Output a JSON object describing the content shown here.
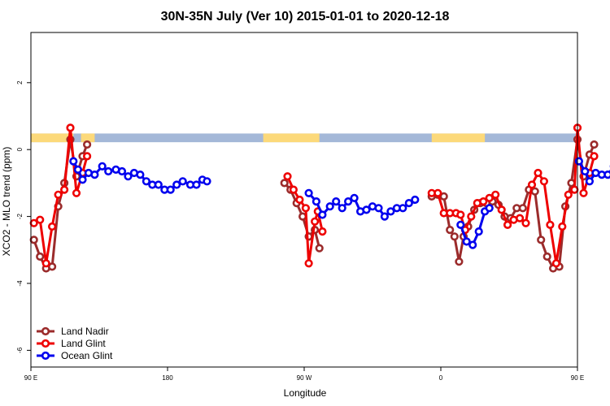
{
  "chart_data": {
    "type": "line",
    "title": "30N-35N July (Ver 10)   2015-01-01 to 2020-12-18",
    "xlabel": "Longitude",
    "ylabel": "XCO2 - MLO trend (ppm)",
    "xlim": [
      90,
      450
    ],
    "ylim": [
      -6.5,
      3.5
    ],
    "x_ticks": [
      {
        "value": 90,
        "label": "90 E"
      },
      {
        "value": 180,
        "label": "180"
      },
      {
        "value": 270,
        "label": "90 W"
      },
      {
        "value": 360,
        "label": "0"
      },
      {
        "value": 450,
        "label": "90 E"
      },
      {
        "value": 540,
        "label": "180"
      }
    ],
    "y_ticks": [
      {
        "value": 2,
        "label": "2"
      },
      {
        "value": 0,
        "label": "0"
      },
      {
        "value": -2,
        "label": "-2"
      },
      {
        "value": -4,
        "label": "-4"
      },
      {
        "value": -6,
        "label": "-6"
      }
    ],
    "grid": false,
    "legend_position": "bottom-left",
    "land_ocean_band": {
      "y_range": [
        0.22,
        0.48
      ],
      "ocean_color": "#a4b8d8",
      "land_color": "#fcd97a",
      "land_segments": [
        [
          90,
          118
        ],
        [
          123,
          132
        ],
        [
          243,
          280
        ],
        [
          354,
          389
        ],
        [
          476,
          493
        ],
        [
          495,
          500
        ]
      ]
    },
    "series": [
      {
        "name": "Land Nadir",
        "color": "#9b2b2b",
        "segments": [
          [
            [
              92,
              -2.7
            ],
            [
              96,
              -3.2
            ],
            [
              100,
              -3.55
            ],
            [
              104,
              -3.5
            ],
            [
              108,
              -1.7
            ],
            [
              112,
              -1.0
            ],
            [
              116,
              0.3
            ],
            [
              120,
              -0.8
            ],
            [
              124,
              -0.2
            ],
            [
              127,
              0.15
            ]
          ],
          [
            [
              257,
              -1.0
            ],
            [
              261,
              -1.2
            ],
            [
              265,
              -1.6
            ],
            [
              269,
              -2.0
            ],
            [
              273,
              -2.6
            ],
            [
              277,
              -2.4
            ],
            [
              280,
              -2.95
            ]
          ],
          [
            [
              354,
              -1.4
            ],
            [
              358,
              -1.35
            ],
            [
              362,
              -1.4
            ],
            [
              366,
              -2.4
            ],
            [
              369,
              -2.6
            ],
            [
              372,
              -3.35
            ],
            [
              375,
              -2.6
            ],
            [
              378,
              -2.3
            ],
            [
              382,
              -1.8
            ],
            [
              386,
              -1.6
            ],
            [
              390,
              -1.6
            ],
            [
              394,
              -1.55
            ],
            [
              398,
              -1.65
            ],
            [
              402,
              -2.0
            ],
            [
              406,
              -2.05
            ],
            [
              410,
              -1.75
            ],
            [
              414,
              -1.75
            ],
            [
              418,
              -1.2
            ],
            [
              422,
              -1.25
            ],
            [
              426,
              -2.7
            ],
            [
              430,
              -3.2
            ],
            [
              434,
              -3.55
            ],
            [
              438,
              -3.5
            ],
            [
              442,
              -1.7
            ],
            [
              446,
              -1.0
            ],
            [
              450,
              0.3
            ],
            [
              454,
              -0.8
            ],
            [
              458,
              -0.15
            ],
            [
              461,
              0.15
            ]
          ]
        ]
      },
      {
        "name": "Land Glint",
        "color": "#ee0000",
        "segments": [
          [
            [
              92,
              -2.2
            ],
            [
              96,
              -2.1
            ],
            [
              100,
              -3.4
            ],
            [
              104,
              -2.3
            ],
            [
              108,
              -1.35
            ],
            [
              112,
              -1.2
            ],
            [
              116,
              0.65
            ],
            [
              120,
              -1.3
            ],
            [
              124,
              -0.7
            ],
            [
              127,
              -0.2
            ]
          ],
          [
            [
              259,
              -0.8
            ],
            [
              263,
              -1.2
            ],
            [
              267,
              -1.5
            ],
            [
              271,
              -1.75
            ],
            [
              273,
              -3.4
            ],
            [
              277,
              -2.15
            ],
            [
              279,
              -1.85
            ],
            [
              282,
              -2.45
            ]
          ],
          [
            [
              354,
              -1.3
            ],
            [
              358,
              -1.3
            ],
            [
              362,
              -1.9
            ],
            [
              366,
              -1.9
            ],
            [
              370,
              -1.9
            ],
            [
              373,
              -1.95
            ],
            [
              376,
              -2.4
            ],
            [
              380,
              -2.0
            ],
            [
              384,
              -1.6
            ],
            [
              388,
              -1.55
            ],
            [
              392,
              -1.45
            ],
            [
              396,
              -1.35
            ],
            [
              400,
              -1.8
            ],
            [
              404,
              -2.25
            ],
            [
              408,
              -2.1
            ],
            [
              412,
              -2.05
            ],
            [
              416,
              -2.2
            ],
            [
              420,
              -1.05
            ],
            [
              424,
              -0.7
            ],
            [
              428,
              -0.95
            ],
            [
              432,
              -2.25
            ],
            [
              436,
              -3.4
            ],
            [
              440,
              -2.3
            ],
            [
              444,
              -1.35
            ],
            [
              448,
              -1.2
            ],
            [
              450,
              0.65
            ],
            [
              454,
              -1.3
            ],
            [
              458,
              -0.7
            ],
            [
              461,
              -0.2
            ]
          ]
        ]
      },
      {
        "name": "Ocean Glint",
        "color": "#0000ee",
        "segments": [
          [
            [
              118,
              -0.35
            ],
            [
              121,
              -0.6
            ],
            [
              124,
              -0.9
            ],
            [
              128,
              -0.7
            ],
            [
              132,
              -0.75
            ],
            [
              137,
              -0.5
            ],
            [
              141,
              -0.65
            ],
            [
              146,
              -0.6
            ],
            [
              150,
              -0.65
            ],
            [
              154,
              -0.8
            ],
            [
              158,
              -0.7
            ],
            [
              162,
              -0.75
            ],
            [
              166,
              -0.95
            ],
            [
              170,
              -1.05
            ],
            [
              174,
              -1.05
            ],
            [
              178,
              -1.2
            ],
            [
              182,
              -1.2
            ],
            [
              186,
              -1.05
            ],
            [
              190,
              -0.95
            ],
            [
              195,
              -1.05
            ],
            [
              199,
              -1.05
            ],
            [
              203,
              -0.9
            ],
            [
              206,
              -0.95
            ]
          ],
          [
            [
              273,
              -1.3
            ],
            [
              278,
              -1.55
            ],
            [
              282,
              -1.95
            ],
            [
              287,
              -1.7
            ],
            [
              291,
              -1.55
            ],
            [
              295,
              -1.75
            ],
            [
              299,
              -1.55
            ],
            [
              303,
              -1.45
            ],
            [
              307,
              -1.85
            ],
            [
              311,
              -1.8
            ],
            [
              315,
              -1.7
            ],
            [
              319,
              -1.75
            ],
            [
              323,
              -2.0
            ],
            [
              327,
              -1.85
            ],
            [
              331,
              -1.75
            ],
            [
              335,
              -1.75
            ],
            [
              339,
              -1.6
            ],
            [
              343,
              -1.5
            ]
          ],
          [
            [
              373,
              -2.25
            ],
            [
              377,
              -2.75
            ],
            [
              381,
              -2.85
            ],
            [
              385,
              -2.45
            ],
            [
              389,
              -1.85
            ],
            [
              392,
              -1.75
            ]
          ],
          [
            [
              451,
              -0.35
            ],
            [
              455,
              -0.65
            ],
            [
              458,
              -0.95
            ],
            [
              462,
              -0.7
            ],
            [
              466,
              -0.75
            ],
            [
              470,
              -0.75
            ],
            [
              474,
              -0.5
            ],
            [
              478,
              -0.65
            ],
            [
              482,
              -0.65
            ],
            [
              486,
              -0.65
            ],
            [
              490,
              -0.7
            ],
            [
              494,
              -0.8
            ]
          ]
        ]
      }
    ]
  }
}
